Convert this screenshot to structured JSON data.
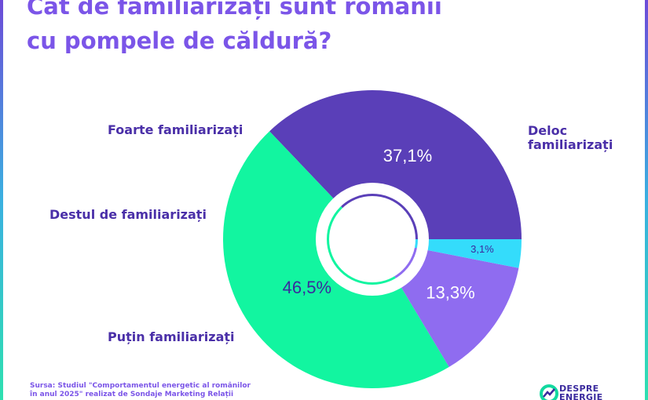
{
  "title": {
    "line1": "Cât de familiarizați sunt românii",
    "line2": "cu pompele de căldură?"
  },
  "chart_data": {
    "type": "pie",
    "title": "Cât de familiarizați sunt românii cu pompele de căldură?",
    "slices": [
      {
        "name": "Deloc familiarizați",
        "name_lines": [
          "Deloc",
          "familiarizați"
        ],
        "value": 37.1,
        "label": "37,1%",
        "color": "#5a3fb8"
      },
      {
        "name": "Puțin familiarizați",
        "name_lines": [
          "Puțin familiarizați"
        ],
        "value": 46.5,
        "label": "46,5%",
        "color": "#12f5a0"
      },
      {
        "name": "Destul de familiarizați",
        "name_lines": [
          "Destul de familiarizați"
        ],
        "value": 13.3,
        "label": "13,3%",
        "color": "#8f6cf0"
      },
      {
        "name": "Foarte familiarizați",
        "name_lines": [
          "Foarte familiarizați"
        ],
        "value": 3.1,
        "label": "3,1%",
        "color": "#34dcfb"
      }
    ]
  },
  "source": {
    "line1": "Sursa: Studiul \"Comportamentul energetic al românilor",
    "line2": "în anul 2025\" realizat de Sondaje Marketing Relații"
  },
  "logo": {
    "line1": "DESPRE",
    "line2": "ENERGIE"
  }
}
